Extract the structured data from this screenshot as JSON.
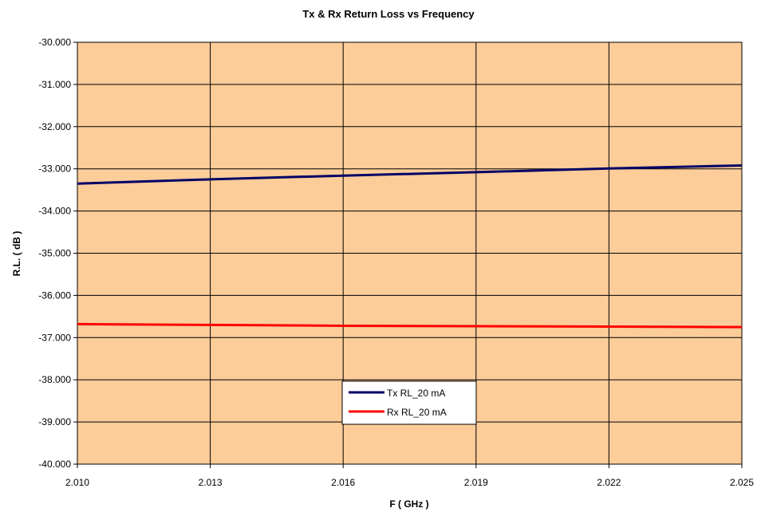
{
  "chart_data": {
    "type": "line",
    "title": "Tx & Rx Return Loss vs Frequency",
    "xlabel": "F ( GHz )",
    "ylabel": "R.L. ( dB )",
    "xlim": [
      2.01,
      2.025
    ],
    "ylim": [
      -40.0,
      -30.0
    ],
    "x_ticks": [
      "2.010",
      "2.013",
      "2.016",
      "2.019",
      "2.022",
      "2.025"
    ],
    "x_tick_values": [
      2.01,
      2.013,
      2.016,
      2.019,
      2.022,
      2.025
    ],
    "y_ticks": [
      "-30.000",
      "-31.000",
      "-32.000",
      "-33.000",
      "-34.000",
      "-35.000",
      "-36.000",
      "-37.000",
      "-38.000",
      "-39.000",
      "-40.000"
    ],
    "y_tick_values": [
      -30,
      -31,
      -32,
      -33,
      -34,
      -35,
      -36,
      -37,
      -38,
      -39,
      -40
    ],
    "grid": true,
    "plot_background": "#FCCC99",
    "legend_position": "bottom-center",
    "series": [
      {
        "name": "Tx RL_20 mA",
        "color": "#000066",
        "x": [
          2.01,
          2.013,
          2.016,
          2.019,
          2.022,
          2.025
        ],
        "values": [
          -33.35,
          -33.25,
          -33.16,
          -33.08,
          -32.99,
          -32.92
        ]
      },
      {
        "name": "Rx RL_20 mA",
        "color": "#FF0000",
        "x": [
          2.01,
          2.013,
          2.016,
          2.019,
          2.022,
          2.025
        ],
        "values": [
          -36.68,
          -36.7,
          -36.72,
          -36.73,
          -36.74,
          -36.75
        ]
      }
    ]
  }
}
